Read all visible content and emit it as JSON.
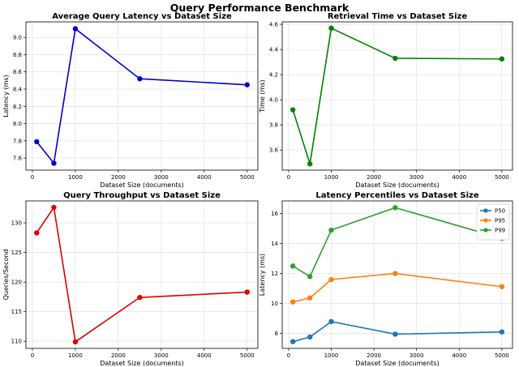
{
  "figure_title": "Query Performance Benchmark",
  "chart_data": [
    {
      "type": "line",
      "title": "Average Query Latency vs Dataset Size",
      "xlabel": "Dataset Size (documents)",
      "ylabel": "Latency (ms)",
      "x": [
        100,
        500,
        1000,
        2500,
        5000
      ],
      "series": [
        {
          "values": [
            7.79,
            7.54,
            9.1,
            8.52,
            8.45
          ],
          "color": "#0000cc"
        }
      ],
      "xlim": [
        -150,
        5250
      ],
      "ylim": [
        7.46,
        9.18
      ],
      "xticks": [
        0,
        1000,
        2000,
        3000,
        4000,
        5000
      ],
      "yticks": [
        7.6,
        7.8,
        8.0,
        8.2,
        8.4,
        8.6,
        8.8,
        9.0
      ],
      "ytick_decimals": 1,
      "grid": true
    },
    {
      "type": "line",
      "title": "Retrieval Time vs Dataset Size",
      "xlabel": "Dataset Size (documents)",
      "ylabel": "Time (ms)",
      "x": [
        100,
        500,
        1000,
        2500,
        5000
      ],
      "series": [
        {
          "values": [
            3.92,
            3.49,
            4.57,
            4.33,
            4.325
          ],
          "color": "#008000"
        }
      ],
      "xlim": [
        -150,
        5250
      ],
      "ylim": [
        3.44,
        4.62
      ],
      "xticks": [
        0,
        1000,
        2000,
        3000,
        4000,
        5000
      ],
      "yticks": [
        3.6,
        3.8,
        4.0,
        4.2,
        4.4,
        4.6
      ],
      "ytick_decimals": 1,
      "grid": true
    },
    {
      "type": "line",
      "title": "Query Throughput vs Dataset Size",
      "xlabel": "Dataset Size (documents)",
      "ylabel": "Queries/Second",
      "x": [
        100,
        500,
        1000,
        2500,
        5000
      ],
      "series": [
        {
          "values": [
            128.3,
            132.6,
            109.9,
            117.4,
            118.3
          ],
          "color": "#dd0000"
        }
      ],
      "xlim": [
        -150,
        5250
      ],
      "ylim": [
        108.8,
        133.7
      ],
      "xticks": [
        0,
        1000,
        2000,
        3000,
        4000,
        5000
      ],
      "yticks": [
        110,
        115,
        120,
        125,
        130
      ],
      "ytick_decimals": 0,
      "grid": true
    },
    {
      "type": "line",
      "title": "Latency Percentiles vs Dataset Size",
      "xlabel": "Dataset Size (documents)",
      "ylabel": "Latency (ms)",
      "x": [
        100,
        500,
        1000,
        2500,
        5000
      ],
      "series": [
        {
          "name": "P50",
          "values": [
            7.45,
            7.76,
            8.79,
            7.95,
            8.1
          ],
          "color": "#1f77b4"
        },
        {
          "name": "P95",
          "values": [
            10.1,
            10.37,
            11.6,
            12.0,
            11.12
          ],
          "color": "#ff7f0e"
        },
        {
          "name": "P99",
          "values": [
            12.5,
            11.8,
            14.9,
            16.4,
            14.35
          ],
          "color": "#2ca02c"
        }
      ],
      "xlim": [
        -150,
        5250
      ],
      "ylim": [
        7.0,
        16.85
      ],
      "xticks": [
        0,
        1000,
        2000,
        3000,
        4000,
        5000
      ],
      "yticks": [
        8,
        10,
        12,
        14,
        16
      ],
      "ytick_decimals": 0,
      "grid": true,
      "legend": "top-right"
    }
  ]
}
